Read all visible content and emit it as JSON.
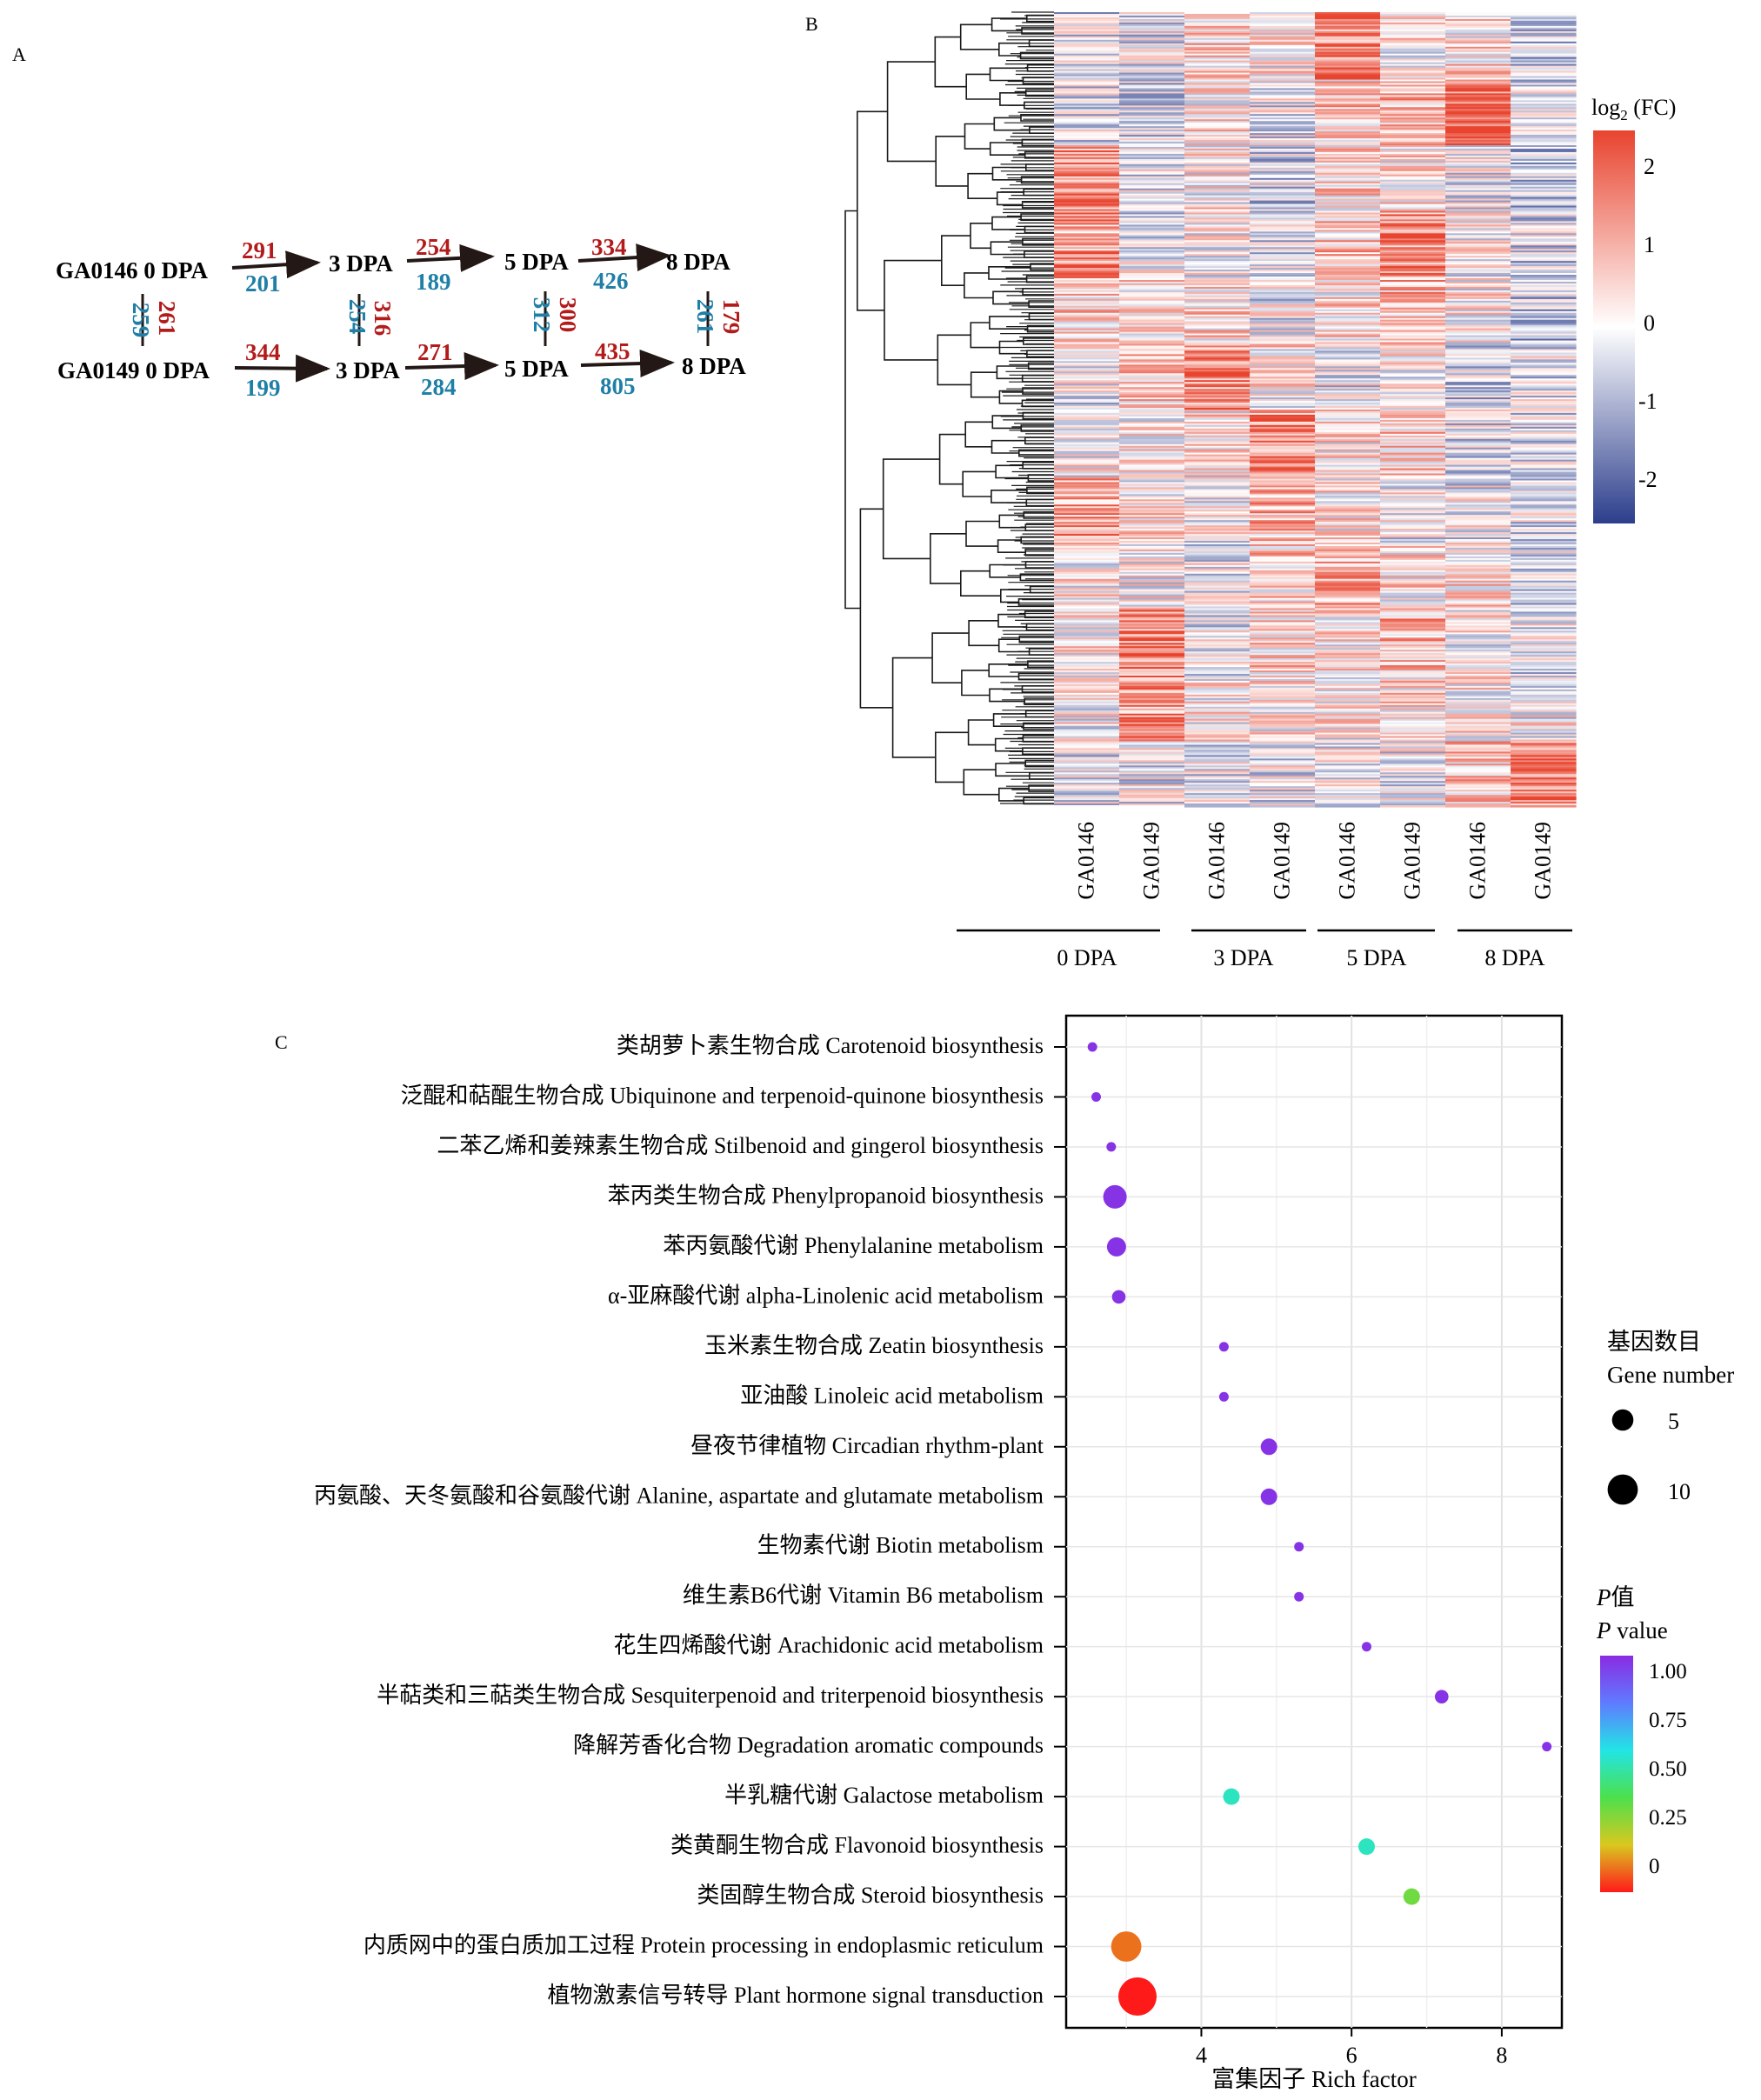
{
  "panel_labels": {
    "a": "A",
    "b": "B",
    "c": "C"
  },
  "colors": {
    "up": "#b31b1b",
    "down": "#1f7fa6",
    "heat_high": "#e8442f",
    "heat_mid": "#ffffff",
    "heat_low": "#2c3e8c"
  },
  "panel_a": {
    "row1_label": "GA0146 0 DPA",
    "row2_label": "GA0149 0 DPA",
    "stages": [
      "3 DPA",
      "5 DPA",
      "8 DPA"
    ],
    "row1_up": [
      "291",
      "254",
      "334"
    ],
    "row1_down": [
      "201",
      "189",
      "426"
    ],
    "row2_up": [
      "344",
      "271",
      "435"
    ],
    "row2_down": [
      "199",
      "284",
      "805"
    ],
    "vertical_down": [
      "259",
      "254",
      "312",
      "261"
    ],
    "vertical_up": [
      "261",
      "316",
      "300",
      "179"
    ]
  },
  "chart_data": [
    {
      "type": "heatmap",
      "legend_title": "log2 (FC)",
      "colorbar_ticks": [
        "2",
        "1",
        "0",
        "-1",
        "-2"
      ],
      "columns": [
        "GA0146",
        "GA0149",
        "GA0146",
        "GA0149",
        "GA0146",
        "GA0149",
        "GA0146",
        "GA0149"
      ],
      "groups": [
        "0 DPA",
        "3 DPA",
        "5 DPA",
        "8 DPA"
      ],
      "range": [
        -2.5,
        2.5
      ],
      "dendrogram": true,
      "row_blocks": [
        [
          -0.4,
          -0.3,
          0.6,
          0.2,
          1.6,
          0.2,
          0.4,
          -0.6
        ],
        [
          -0.3,
          -0.4,
          0.3,
          -0.2,
          0.6,
          0.9,
          1.8,
          -0.3
        ],
        [
          1.6,
          -0.2,
          0.2,
          -0.5,
          0.5,
          0.3,
          -0.1,
          -0.6
        ],
        [
          1.3,
          -0.2,
          0.1,
          -0.3,
          0.7,
          1.6,
          0.1,
          -0.5
        ],
        [
          0.6,
          0.4,
          0.5,
          -0.2,
          0.4,
          0.9,
          0.1,
          -0.7
        ],
        [
          -0.2,
          0.6,
          1.5,
          0.2,
          -0.2,
          0.1,
          -0.5,
          -0.3
        ],
        [
          0.1,
          0.2,
          0.3,
          1.6,
          0.3,
          0.6,
          -0.3,
          -0.4
        ],
        [
          1.2,
          0.3,
          0.1,
          0.9,
          0.3,
          -0.1,
          -0.2,
          -0.4
        ],
        [
          0.2,
          0.1,
          -0.2,
          0.6,
          1.0,
          0.3,
          0.4,
          -0.3
        ],
        [
          0.3,
          1.6,
          -0.2,
          0.5,
          0.2,
          0.9,
          0.1,
          -0.2
        ],
        [
          0.0,
          1.5,
          0.2,
          0.3,
          0.2,
          0.4,
          0.3,
          0.0
        ],
        [
          -0.3,
          -0.2,
          -0.3,
          -0.2,
          -0.1,
          -0.2,
          0.7,
          1.6
        ]
      ]
    },
    {
      "type": "scatter",
      "xlabel": "富集因子 Rich factor",
      "xlim": [
        2.2,
        8.8
      ],
      "xticks": [
        4,
        6,
        8
      ],
      "size_legend_title_zh": "基因数目",
      "size_legend_title_en": "Gene number",
      "size_legend_values": [
        5,
        10
      ],
      "color_legend_title_zh": "P值",
      "color_legend_title_en": "P value",
      "color_legend_ticks": [
        "1.00",
        "0.75",
        "0.50",
        "0.25",
        "0"
      ],
      "categories": [
        "类胡萝卜素生物合成 Carotenoid biosynthesis",
        "泛醌和萜醌生物合成 Ubiquinone and terpenoid-quinone biosynthesis",
        "二苯乙烯和姜辣素生物合成 Stilbenoid and gingerol biosynthesis",
        "苯丙类生物合成 Phenylpropanoid biosynthesis",
        "苯丙氨酸代谢 Phenylalanine metabolism",
        "α-亚麻酸代谢 alpha-Linolenic acid metabolism",
        "玉米素生物合成 Zeatin biosynthesis",
        "亚油酸 Linoleic acid metabolism",
        "昼夜节律植物 Circadian rhythm-plant",
        "丙氨酸、天冬氨酸和谷氨酸代谢 Alanine, aspartate and glutamate metabolism",
        "生物素代谢 Biotin metabolism",
        "维生素B6代谢 Vitamin B6 metabolism",
        "花生四烯酸代谢 Arachidonic acid metabolism",
        "半萜类和三萜类生物合成 Sesquiterpenoid and triterpenoid biosynthesis",
        "降解芳香化合物 Degradation aromatic compounds",
        "半乳糖代谢 Galactose metabolism",
        "类黄酮生物合成 Flavonoid biosynthesis",
        "类固醇生物合成 Steroid biosynthesis",
        "内质网中的蛋白质加工过程 Protein processing in endoplasmic reticulum",
        "植物激素信号转导 Plant hormone signal transduction"
      ],
      "x": [
        2.55,
        2.6,
        2.8,
        2.85,
        2.87,
        2.9,
        4.3,
        4.3,
        4.9,
        4.9,
        5.3,
        5.3,
        6.2,
        7.2,
        8.6,
        4.4,
        6.2,
        6.8,
        3.0,
        3.15
      ],
      "gene_number": [
        1,
        1,
        1,
        6,
        4,
        2,
        1,
        1,
        3,
        3,
        1,
        1,
        1,
        2,
        1,
        3,
        3,
        3,
        10,
        16
      ],
      "p_value": [
        0.98,
        0.98,
        0.98,
        0.98,
        0.98,
        0.98,
        0.98,
        0.98,
        0.98,
        0.98,
        0.98,
        0.98,
        0.98,
        0.98,
        0.98,
        0.55,
        0.55,
        0.35,
        0.1,
        0.0
      ]
    }
  ]
}
